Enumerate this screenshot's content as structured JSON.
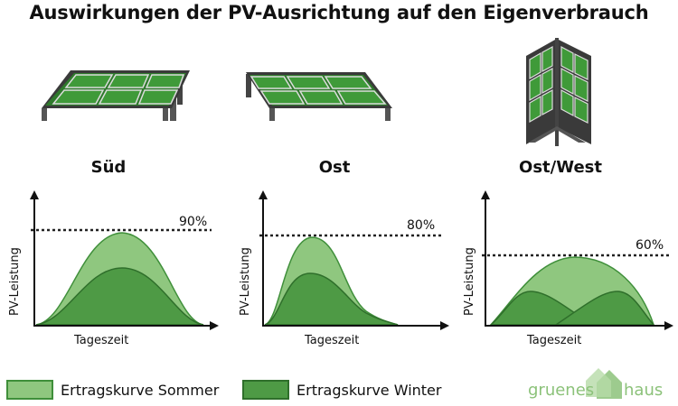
{
  "title": "Auswirkungen der PV-Ausrichtung auf den Eigenverbrauch",
  "panels": [
    {
      "label": "Süd",
      "percent": "90%",
      "ylabel": "PV-Leistung",
      "xlabel": "Tageszeit"
    },
    {
      "label": "Ost",
      "percent": "80%",
      "ylabel": "PV-Leistung",
      "xlabel": "Tageszeit"
    },
    {
      "label": "Ost/West",
      "percent": "60%",
      "ylabel": "PV-Leistung",
      "xlabel": "Tageszeit"
    }
  ],
  "legend": {
    "summer": "Ertragskurve Sommer",
    "winter": "Ertragskurve Winter"
  },
  "brand": {
    "left": "gruenes",
    "right": "haus"
  },
  "colors": {
    "summer_fill": "#8fc77f",
    "summer_stroke": "#3f8f3a",
    "winter_fill": "#4e9a45",
    "winter_stroke": "#2f6f2b",
    "brand": "#8cc27a",
    "panel": "#3d8a37",
    "frame": "#4a4a4a"
  }
}
